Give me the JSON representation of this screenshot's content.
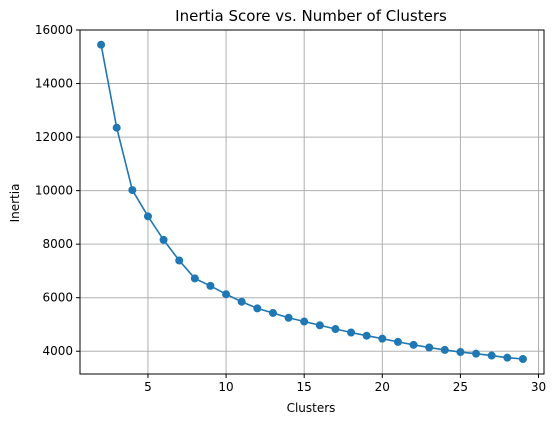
{
  "chart_data": {
    "type": "line",
    "title": "Inertia Score vs. Number of Clusters",
    "xlabel": "Clusters",
    "ylabel": "Inertia",
    "xlim": [
      0.65,
      30.35
    ],
    "ylim": [
      3150,
      16000
    ],
    "xticks": [
      5,
      10,
      15,
      20,
      25,
      30
    ],
    "xtick_labels": [
      "5",
      "10",
      "15",
      "20",
      "25",
      "30"
    ],
    "yticks": [
      4000,
      6000,
      8000,
      10000,
      12000,
      14000,
      16000
    ],
    "ytick_labels": [
      "4000",
      "6000",
      "8000",
      "10000",
      "12000",
      "14000",
      "16000"
    ],
    "grid": true,
    "series": [
      {
        "color": "#1f77b4",
        "marker": "circle",
        "x": [
          2,
          3,
          4,
          5,
          6,
          7,
          8,
          9,
          10,
          11,
          12,
          13,
          14,
          15,
          16,
          17,
          18,
          19,
          20,
          21,
          22,
          23,
          24,
          25,
          26,
          27,
          28,
          29
        ],
        "y": [
          15450,
          12350,
          10020,
          9040,
          8160,
          7390,
          6720,
          6440,
          6130,
          5850,
          5600,
          5430,
          5250,
          5110,
          4970,
          4830,
          4700,
          4580,
          4470,
          4350,
          4240,
          4140,
          4050,
          3970,
          3910,
          3840,
          3760,
          3710
        ]
      }
    ]
  }
}
